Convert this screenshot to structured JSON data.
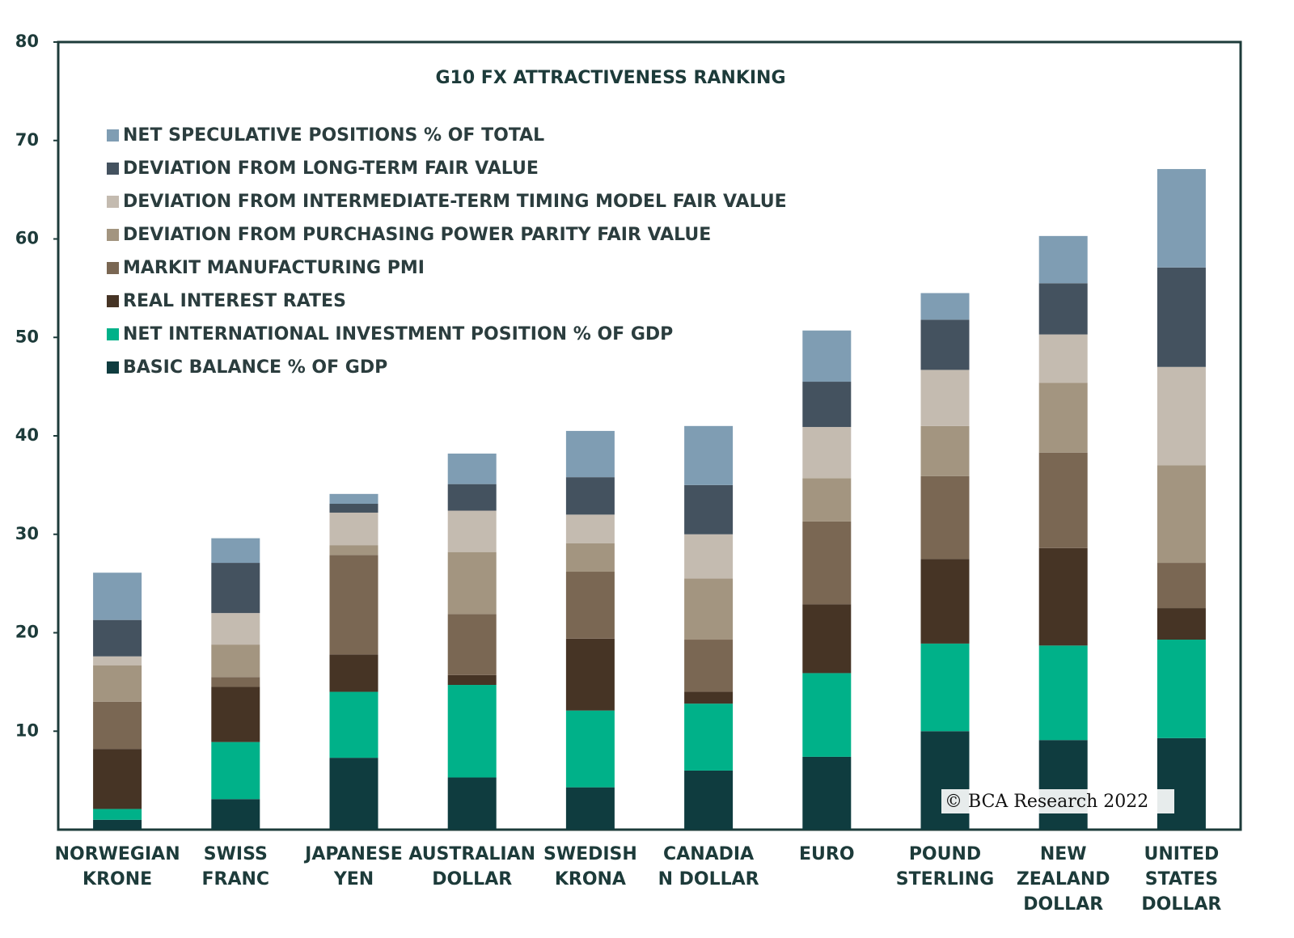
{
  "chart_data": {
    "type": "stacked_bar",
    "title": "G10 FX ATTRACTIVENESS RANKING",
    "credit": "© BCA Research 2022",
    "categories": [
      [
        "NORWEGIAN",
        "KRONE"
      ],
      [
        "SWISS",
        "FRANC"
      ],
      [
        "JAPANESE",
        "YEN"
      ],
      [
        "AUSTRALIAN",
        "DOLLAR"
      ],
      [
        "SWEDISH",
        "KRONA"
      ],
      [
        "CANADIA",
        "N DOLLAR"
      ],
      [
        "EURO"
      ],
      [
        "POUND",
        "STERLING"
      ],
      [
        "NEW",
        "ZEALAND",
        "DOLLAR"
      ],
      [
        "UNITED",
        "STATES",
        "DOLLAR"
      ]
    ],
    "series": [
      {
        "name": "BASIC BALANCE % OF GDP",
        "color": "#0f3c3f",
        "values": [
          1.0,
          3.1,
          7.3,
          5.3,
          4.3,
          6.0,
          7.4,
          10.0,
          9.1,
          9.3
        ]
      },
      {
        "name": "NET INTERNATIONAL INVESTMENT POSITION % OF GDP",
        "color": "#00b189",
        "values": [
          1.1,
          5.8,
          6.7,
          9.4,
          7.8,
          6.8,
          8.5,
          8.9,
          9.6,
          10.0
        ]
      },
      {
        "name": "REAL INTEREST RATES",
        "color": "#463425",
        "values": [
          6.1,
          5.6,
          3.8,
          1.0,
          7.3,
          1.2,
          7.0,
          8.6,
          9.9,
          3.2
        ]
      },
      {
        "name": "MARKIT MANUFACTURING PMI",
        "color": "#7a6753",
        "values": [
          4.8,
          1.0,
          10.1,
          6.2,
          6.8,
          5.3,
          8.4,
          8.4,
          9.7,
          4.6
        ]
      },
      {
        "name": "DEVIATION FROM PURCHASING POWER PARITY FAIR VALUE",
        "color": "#a39580",
        "values": [
          3.7,
          3.3,
          1.0,
          6.3,
          2.9,
          6.2,
          4.4,
          5.1,
          7.1,
          9.9
        ]
      },
      {
        "name": "DEVIATION FROM INTERMEDIATE-TERM TIMING MODEL FAIR VALUE",
        "color": "#c4bbb0",
        "values": [
          0.9,
          3.2,
          3.3,
          4.2,
          2.9,
          4.5,
          5.2,
          5.7,
          4.9,
          10.0
        ]
      },
      {
        "name": "DEVIATION FROM LONG-TERM FAIR VALUE",
        "color": "#44525f",
        "values": [
          3.7,
          5.1,
          0.9,
          2.7,
          3.8,
          5.0,
          4.6,
          5.1,
          5.2,
          10.1
        ]
      },
      {
        "name": "NET SPECULATIVE POSITIONS % OF TOTAL",
        "color": "#7f9db3",
        "values": [
          4.8,
          2.5,
          1.0,
          3.1,
          4.7,
          6.0,
          5.2,
          2.7,
          4.8,
          10.0
        ]
      }
    ],
    "ylim": [
      0,
      80
    ],
    "yticks": [
      10,
      20,
      30,
      40,
      50,
      60,
      70,
      80
    ],
    "legend": "upper left"
  }
}
